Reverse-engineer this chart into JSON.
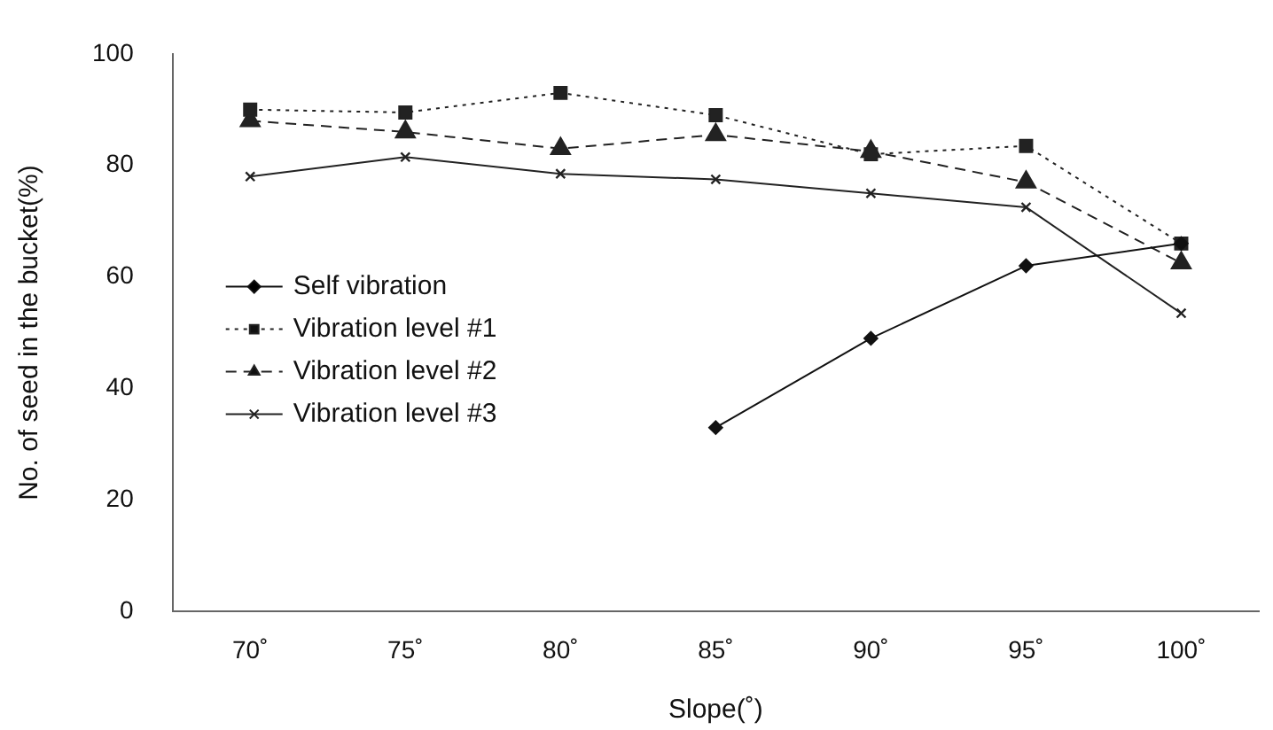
{
  "chart_data": {
    "type": "line",
    "xlabel": "Slope(˚)",
    "ylabel": "No. of seed in the bucket(%)",
    "categories": [
      "70˚",
      "75˚",
      "80˚",
      "85˚",
      "90˚",
      "95˚",
      "100˚"
    ],
    "ylim": [
      0,
      100
    ],
    "yticks": [
      0,
      20,
      40,
      60,
      80,
      100
    ],
    "grid": false,
    "legend": "left",
    "series": [
      {
        "name": "Self vibration",
        "color": "#111111",
        "marker": "diamond",
        "line_style": "solid",
        "values": [
          null,
          null,
          null,
          33,
          49,
          62,
          66
        ]
      },
      {
        "name": "Vibration level #1",
        "color": "#222222",
        "marker": "square",
        "line_style": "dotted",
        "values": [
          90,
          89.5,
          93,
          89,
          82,
          83.5,
          66
        ]
      },
      {
        "name": "Vibration level #2",
        "color": "#222222",
        "marker": "triangle",
        "line_style": "dashed",
        "values": [
          88,
          86,
          83,
          85.5,
          82.5,
          77,
          62.5
        ]
      },
      {
        "name": "Vibration level #3",
        "color": "#222222",
        "marker": "cross",
        "line_style": "solid",
        "values": [
          78,
          81.5,
          78.5,
          77.5,
          75,
          72.5,
          53.5
        ]
      }
    ]
  }
}
